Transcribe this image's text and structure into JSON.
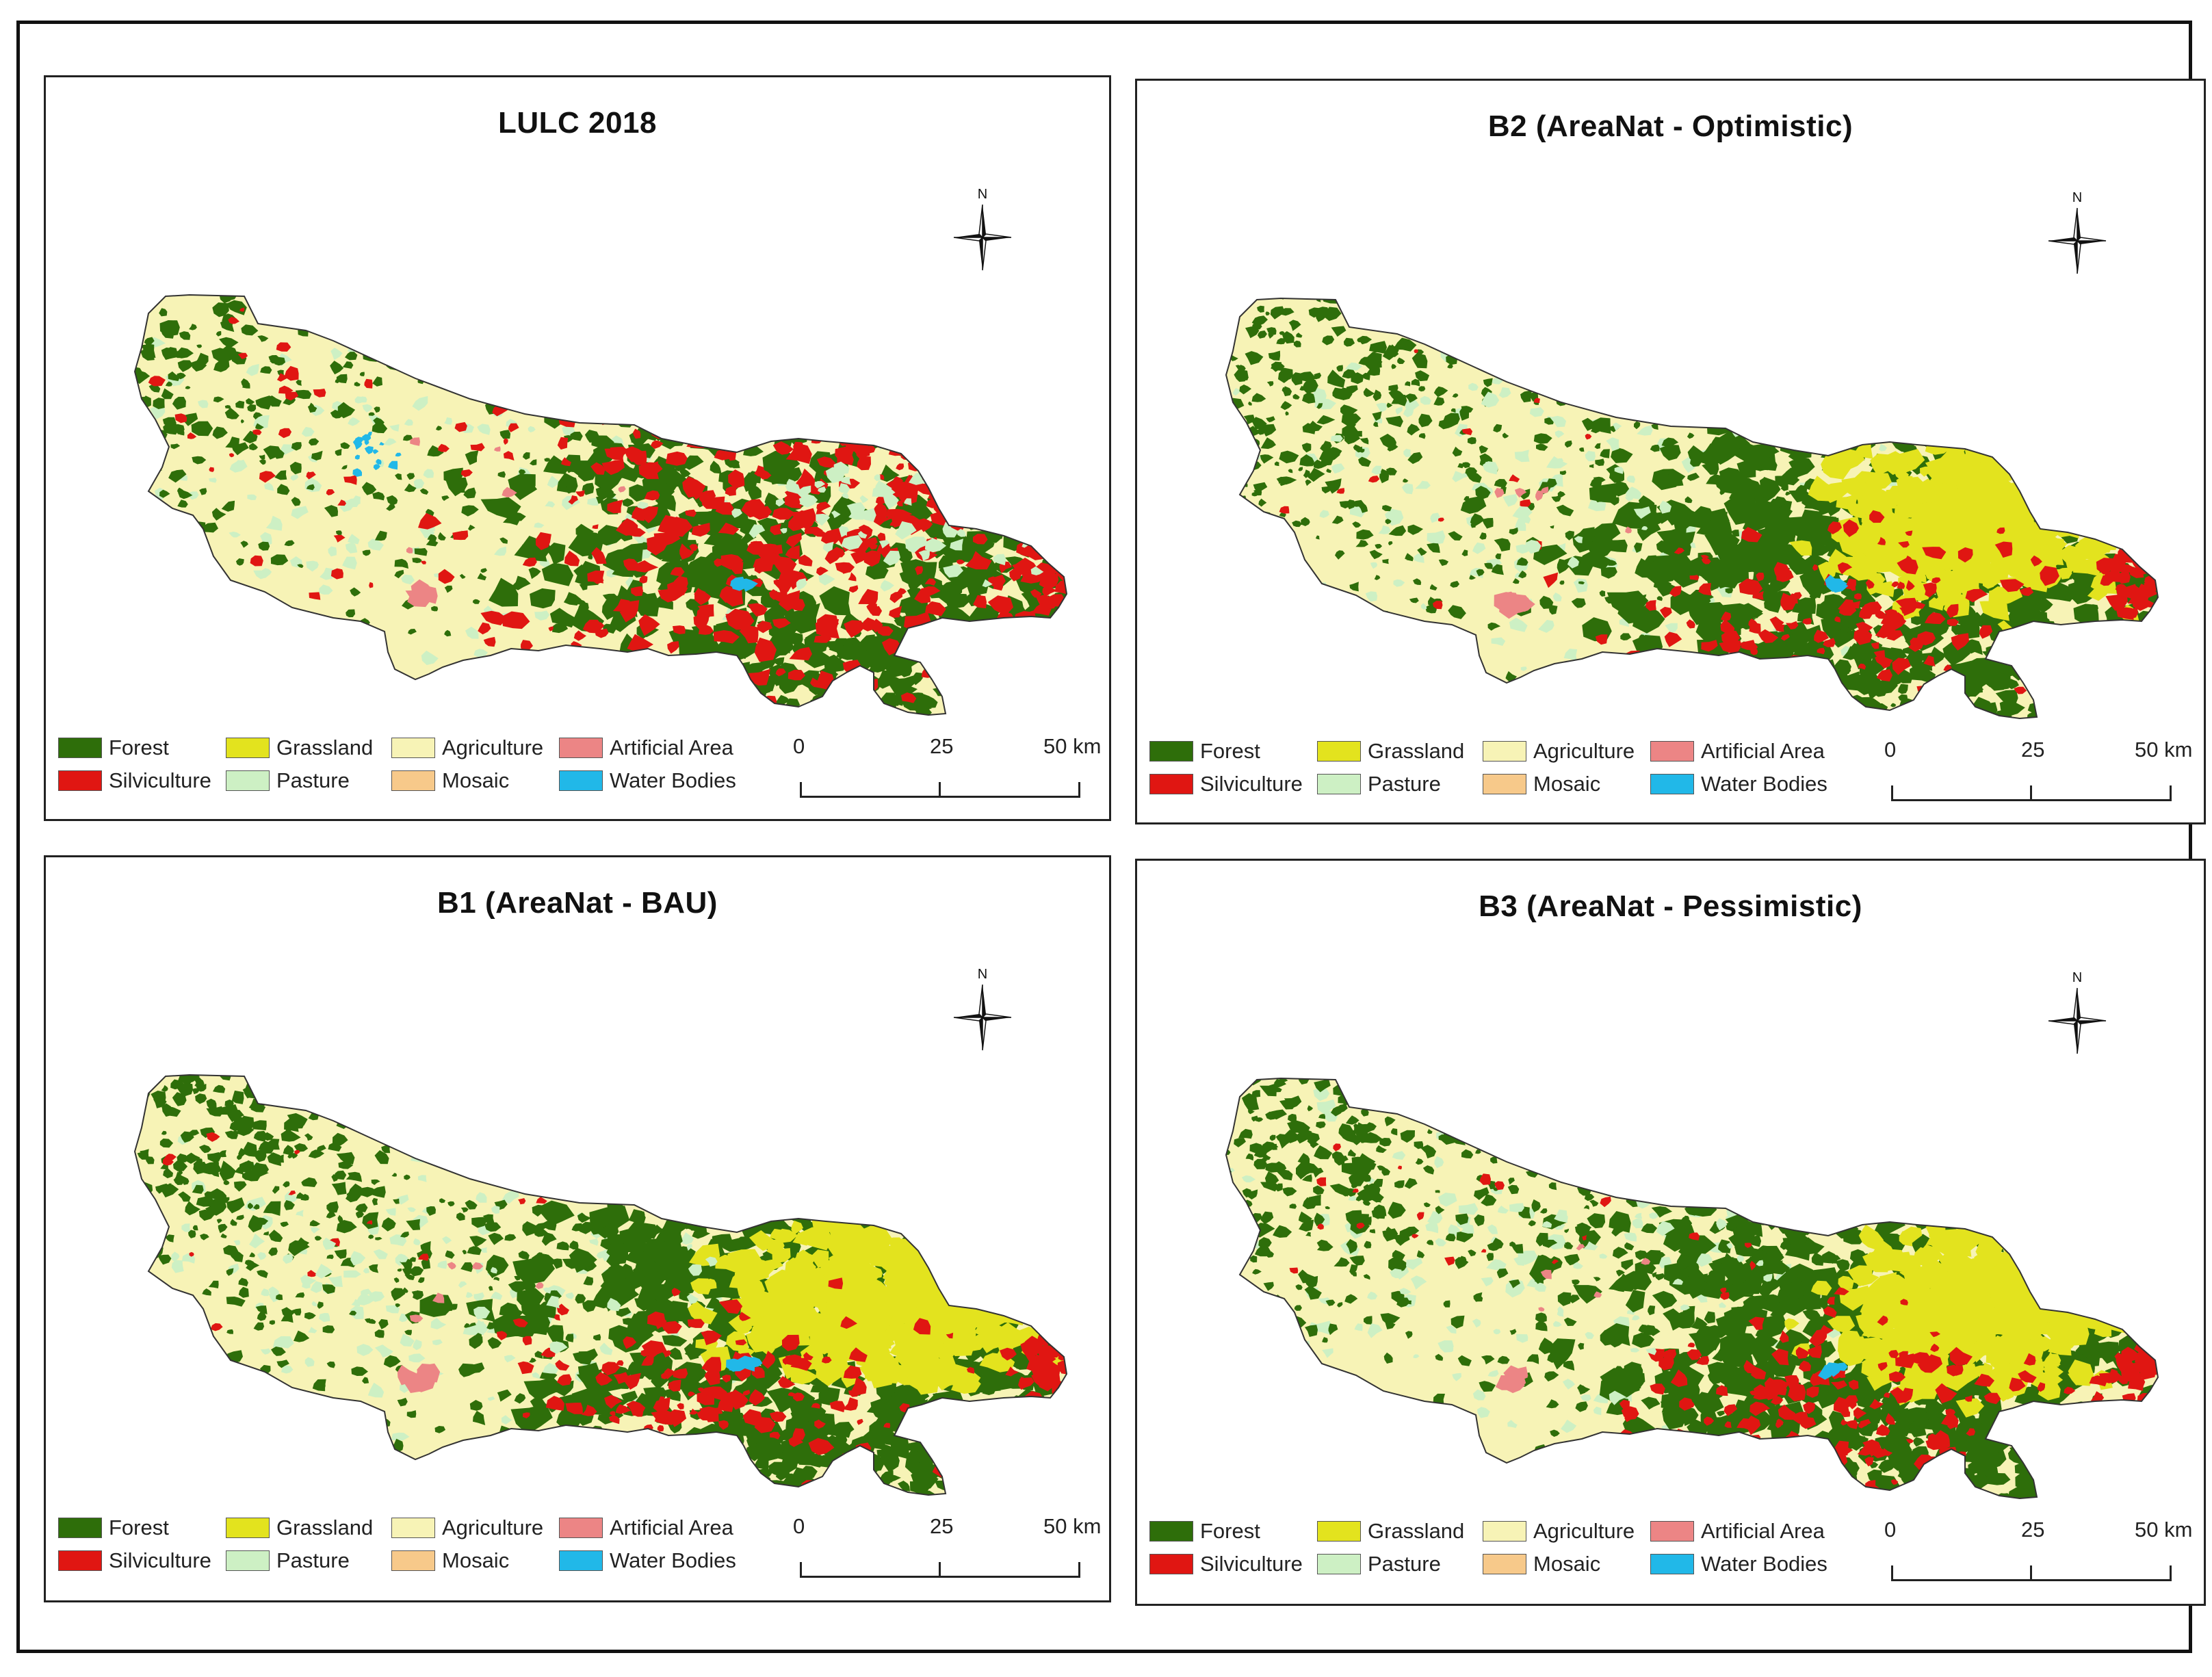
{
  "panels": [
    {
      "title": "LULC 2018",
      "variant": 0
    },
    {
      "title": "B2 (AreaNat - Optimistic)",
      "variant": 2
    },
    {
      "title": "B1 (AreaNat - BAU)",
      "variant": 1
    },
    {
      "title": "B3 (AreaNat - Pessimistic)",
      "variant": 3
    }
  ],
  "legend": {
    "forest": "Forest",
    "grassland": "Grassland",
    "agriculture": "Agriculture",
    "artificial_area": "Artificial Area",
    "silviculture": "Silviculture",
    "pasture": "Pasture",
    "mosaic": "Mosaic",
    "water_bodies": "Water Bodies"
  },
  "colors": {
    "forest": "#2e6e0a",
    "grassland": "#e3e31e",
    "agriculture": "#f7f3b6",
    "artificial_area": "#ec8585",
    "silviculture": "#e01612",
    "pasture": "#cdf0c4",
    "mosaic": "#f7c98a",
    "water_bodies": "#21b8e8"
  },
  "scalebar": {
    "tick_0": "0",
    "tick_25": "25",
    "tick_50": "50 km"
  },
  "north_label": "N"
}
